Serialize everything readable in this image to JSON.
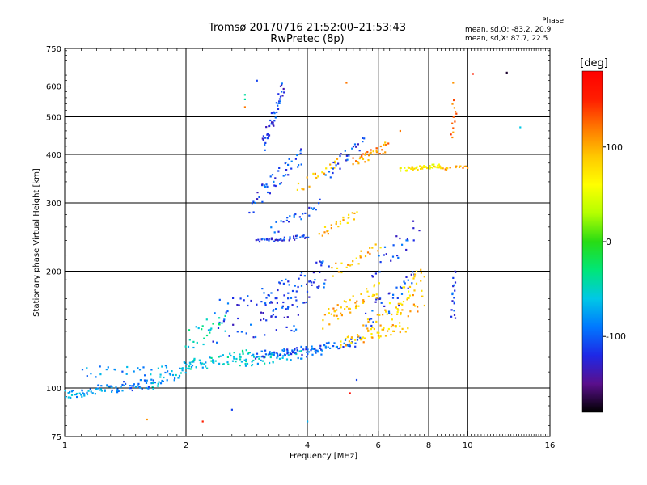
{
  "title": {
    "line1": "Tromsø 20170716 21:52:00–21:53:43",
    "line2": "RwPretec (8p)"
  },
  "phase_info": {
    "header": "Phase",
    "line_o": "mean, sd,O: -83.2, 20.9",
    "line_x": "mean, sd,X:  87.7, 22.5"
  },
  "colorbar": {
    "unit": "[deg]",
    "ticks": [
      {
        "value": 100,
        "label": "100"
      },
      {
        "value": 0,
        "label": "0"
      },
      {
        "value": -100,
        "label": "-100"
      }
    ],
    "range": [
      -180,
      180
    ],
    "colormap": [
      "#000000",
      "#5a0f8c",
      "#1e28e6",
      "#0078ff",
      "#00c8e6",
      "#00e678",
      "#28dc14",
      "#b4ff00",
      "#ffff00",
      "#ffc800",
      "#ff7800",
      "#ff1e00",
      "#ff0000"
    ]
  },
  "chart_data": {
    "type": "scatter",
    "title": "Tromsø 20170716 21:52:00–21:53:43",
    "subtitle": "RwPretec (8p)",
    "xlabel": "Frequency [MHz]",
    "ylabel": "Stationary phase Virtual Height [km]",
    "x_scale": "log",
    "y_scale": "log",
    "xlim": [
      1,
      16
    ],
    "ylim": [
      75,
      750
    ],
    "x_ticks": [
      {
        "value": 1,
        "label": "1"
      },
      {
        "value": 2,
        "label": "2"
      },
      {
        "value": 4,
        "label": "4"
      },
      {
        "value": 6,
        "label": "6"
      },
      {
        "value": 8,
        "label": "8"
      },
      {
        "value": 10,
        "label": "10"
      },
      {
        "value": 16,
        "label": "16"
      }
    ],
    "y_ticks": [
      {
        "value": 75,
        "label": "75"
      },
      {
        "value": 100,
        "label": "100"
      },
      {
        "value": 200,
        "label": "200"
      },
      {
        "value": 300,
        "label": "300"
      },
      {
        "value": 400,
        "label": "400"
      },
      {
        "value": 500,
        "label": "500"
      },
      {
        "value": 600,
        "label": "600"
      },
      {
        "value": 750,
        "label": "750"
      }
    ],
    "grid_x": [
      2,
      4,
      6,
      8,
      10
    ],
    "grid_y": [
      100,
      200,
      300,
      400,
      500,
      600
    ],
    "color_variable": "phase [deg]",
    "traces": [
      {
        "f": [
          1.0,
          1.3
        ],
        "h": [
          96,
          100
        ],
        "phase": -75,
        "n": 45,
        "spread": 3
      },
      {
        "f": [
          1.3,
          1.65
        ],
        "h": [
          100,
          103
        ],
        "phase": -95,
        "n": 40,
        "spread": 3
      },
      {
        "f": [
          1.1,
          1.8
        ],
        "h": [
          110,
          112
        ],
        "phase": -80,
        "n": 25,
        "spread": 4
      },
      {
        "f": [
          1.65,
          2.1
        ],
        "h": [
          103,
          115
        ],
        "phase": -70,
        "n": 40,
        "spread": 4
      },
      {
        "f": [
          2.0,
          2.9
        ],
        "h": [
          114,
          122
        ],
        "phase": -55,
        "n": 55,
        "spread": 4
      },
      {
        "f": [
          2.7,
          3.9
        ],
        "h": [
          117,
          123
        ],
        "phase": -65,
        "n": 55,
        "spread": 4
      },
      {
        "f": [
          3.0,
          4.3
        ],
        "h": [
          122,
          126
        ],
        "phase": -105,
        "n": 55,
        "spread": 3
      },
      {
        "f": [
          4.0,
          5.4
        ],
        "h": [
          124,
          132
        ],
        "phase": -95,
        "n": 40,
        "spread": 4
      },
      {
        "f": [
          4.8,
          7.0
        ],
        "h": [
          130,
          145
        ],
        "phase": 85,
        "n": 45,
        "spread": 5
      },
      {
        "f": [
          5.5,
          7.8
        ],
        "h": [
          140,
          170
        ],
        "phase": 95,
        "n": 40,
        "spread": 10
      },
      {
        "f": [
          5.6,
          7.4
        ],
        "h": [
          150,
          190
        ],
        "phase": -110,
        "n": 35,
        "spread": 12
      },
      {
        "f": [
          4.4,
          6.0
        ],
        "h": [
          150,
          180
        ],
        "phase": 95,
        "n": 50,
        "spread": 8
      },
      {
        "f": [
          2.3,
          3.8
        ],
        "h": [
          150,
          160
        ],
        "phase": -110,
        "n": 55,
        "spread": 20
      },
      {
        "f": [
          3.1,
          4.5
        ],
        "h": [
          160,
          200
        ],
        "phase": -110,
        "n": 70,
        "spread": 20
      },
      {
        "f": [
          3.0,
          4.0
        ],
        "h": [
          240,
          245
        ],
        "phase": -115,
        "n": 40,
        "spread": 3
      },
      {
        "f": [
          2.9,
          3.9
        ],
        "h": [
          300,
          400
        ],
        "phase": -110,
        "n": 45,
        "spread": 20
      },
      {
        "f": [
          3.1,
          3.5
        ],
        "h": [
          420,
          600
        ],
        "phase": -115,
        "n": 45,
        "spread": 10
      },
      {
        "f": [
          3.3,
          4.3
        ],
        "h": [
          255,
          300
        ],
        "phase": -105,
        "n": 25,
        "spread": 10
      },
      {
        "f": [
          4.3,
          5.3
        ],
        "h": [
          250,
          280
        ],
        "phase": 90,
        "n": 25,
        "spread": 6
      },
      {
        "f": [
          3.8,
          4.8
        ],
        "h": [
          330,
          380
        ],
        "phase": 95,
        "n": 20,
        "spread": 15
      },
      {
        "f": [
          5.2,
          6.3
        ],
        "h": [
          380,
          420
        ],
        "phase": 110,
        "n": 35,
        "spread": 12
      },
      {
        "f": [
          4.5,
          5.5
        ],
        "h": [
          360,
          430
        ],
        "phase": -110,
        "n": 25,
        "spread": 15
      },
      {
        "f": [
          6.8,
          8.6
        ],
        "h": [
          365,
          375
        ],
        "phase": 70,
        "n": 45,
        "spread": 4
      },
      {
        "f": [
          8.6,
          10.0
        ],
        "h": [
          368,
          372
        ],
        "phase": 100,
        "n": 18,
        "spread": 3
      },
      {
        "f": [
          4.6,
          6.0
        ],
        "h": [
          200,
          230
        ],
        "phase": 95,
        "n": 25,
        "spread": 8
      },
      {
        "f": [
          5.8,
          7.5
        ],
        "h": [
          200,
          260
        ],
        "phase": -110,
        "n": 25,
        "spread": 15
      },
      {
        "f": [
          6.5,
          7.8
        ],
        "h": [
          160,
          200
        ],
        "phase": 75,
        "n": 25,
        "spread": 10
      },
      {
        "f": [
          9.2,
          9.3
        ],
        "h": [
          150,
          200
        ],
        "phase": -110,
        "n": 18,
        "spread": 3
      },
      {
        "f": [
          9.2,
          9.3
        ],
        "h": [
          440,
          550
        ],
        "phase": 120,
        "n": 12,
        "spread": 4
      },
      {
        "f": [
          2.0,
          2.5
        ],
        "h": [
          130,
          150
        ],
        "phase": -50,
        "n": 25,
        "spread": 10
      }
    ],
    "isolated_points": [
      {
        "f": 1.6,
        "h": 83,
        "phase": 110
      },
      {
        "f": 2.2,
        "h": 82,
        "phase": 150
      },
      {
        "f": 2.6,
        "h": 88,
        "phase": -110
      },
      {
        "f": 2.8,
        "h": 530,
        "phase": 120
      },
      {
        "f": 2.8,
        "h": 555,
        "phase": -40
      },
      {
        "f": 3.0,
        "h": 620,
        "phase": -110
      },
      {
        "f": 4.0,
        "h": 82,
        "phase": -70
      },
      {
        "f": 5.1,
        "h": 97,
        "phase": 170
      },
      {
        "f": 5.3,
        "h": 105,
        "phase": -110
      },
      {
        "f": 5.0,
        "h": 612,
        "phase": 120
      },
      {
        "f": 9.2,
        "h": 612,
        "phase": 110
      },
      {
        "f": 12.5,
        "h": 650,
        "phase": -170
      },
      {
        "f": 10.3,
        "h": 645,
        "phase": 150
      },
      {
        "f": 13.5,
        "h": 470,
        "phase": -60
      },
      {
        "f": 2.8,
        "h": 570,
        "phase": -40
      },
      {
        "f": 6.8,
        "h": 460,
        "phase": 120
      }
    ]
  }
}
